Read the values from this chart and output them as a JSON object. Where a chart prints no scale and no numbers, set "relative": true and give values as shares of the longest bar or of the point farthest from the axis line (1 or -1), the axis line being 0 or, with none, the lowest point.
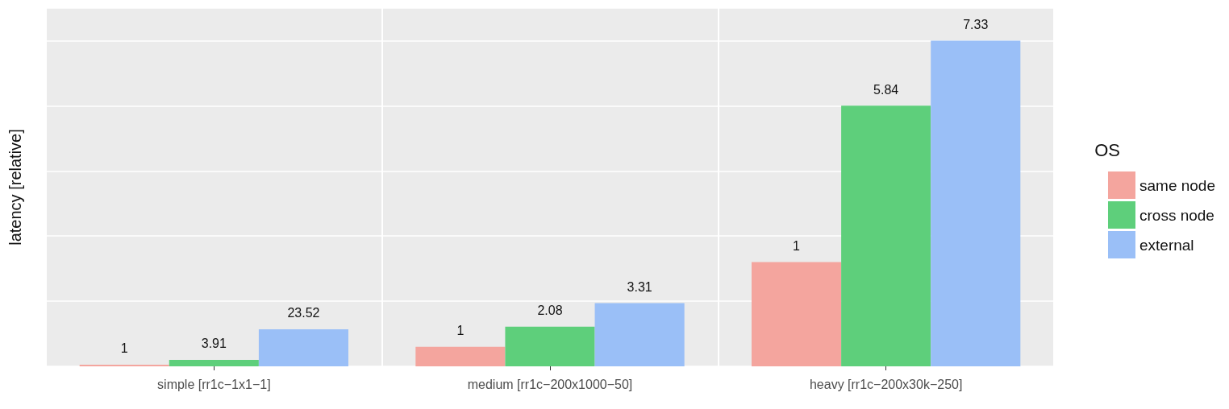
{
  "chart_data": {
    "type": "bar",
    "ylabel": "latency [relative]",
    "legend_title": "OS",
    "categories": [
      "simple [rr1c−1x1−1]",
      "medium [rr1c−200x1000−50]",
      "heavy [rr1c−200x30k−250]"
    ],
    "series": [
      {
        "name": "same node",
        "color": "#f4a59e",
        "values": [
          0.005,
          0.06,
          0.32
        ]
      },
      {
        "name": "cross node",
        "color": "#5ecf7b",
        "values": [
          0.02,
          0.122,
          0.8
        ]
      },
      {
        "name": "external",
        "color": "#9abff7",
        "values": [
          0.114,
          0.194,
          1
        ]
      }
    ],
    "annotations": [
      "1",
      "1",
      "1",
      "3.91",
      "2.08",
      "5.84",
      "23.52",
      "3.31",
      "7.33"
    ],
    "relative": true,
    "grid": true,
    "legend": "right"
  }
}
